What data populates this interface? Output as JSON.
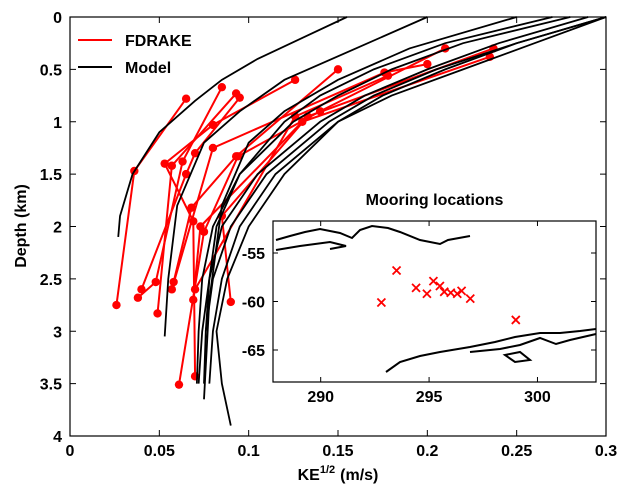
{
  "chart_data": [
    {
      "type": "line",
      "xlabel": {
        "base": "KE",
        "sup": "1/2",
        "unit": "(m/s)"
      },
      "ylabel": "Depth (km)",
      "xlim": [
        0,
        0.3
      ],
      "xticks": [
        0,
        0.05,
        0.1,
        0.15,
        0.2,
        0.25,
        0.3
      ],
      "ylim": [
        4,
        0
      ],
      "yticks": [
        0,
        0.5,
        1,
        1.5,
        2,
        2.5,
        3,
        3.5,
        4
      ],
      "legend": "upper left",
      "series": [
        {
          "name": "FDRAKE",
          "color": "#ff0000",
          "markers": true,
          "profiles": [
            {
              "x": [
                0.237,
                0.133,
                0.085,
                0.09
              ],
              "y": [
                0.3,
                0.95,
                1.9,
                2.72
              ]
            },
            {
              "x": [
                0.235,
                0.13,
                0.073,
                0.069
              ],
              "y": [
                0.38,
                1.0,
                2.0,
                2.7
              ]
            },
            {
              "x": [
                0.21,
                0.14,
                0.094,
                0.075,
                0.061
              ],
              "y": [
                0.3,
                0.9,
                1.33,
                2.05,
                3.51
              ]
            },
            {
              "x": [
                0.2,
                0.176,
                0.08,
                0.057
              ],
              "y": [
                0.45,
                0.53,
                1.25,
                2.6
              ]
            },
            {
              "x": [
                0.15,
                0.093,
                0.068,
                0.058
              ],
              "y": [
                0.5,
                1.33,
                1.82,
                2.53
              ]
            },
            {
              "x": [
                0.126,
                0.08,
                0.053,
                0.069,
                0.07
              ],
              "y": [
                0.6,
                1.03,
                1.4,
                1.95,
                3.43
              ]
            },
            {
              "x": [
                0.085,
                0.063,
                0.048,
                0.038
              ],
              "y": [
                0.67,
                1.38,
                2.53,
                2.68
              ]
            },
            {
              "x": [
                0.065,
                0.036,
                0.026
              ],
              "y": [
                0.78,
                1.47,
                2.75
              ]
            },
            {
              "x": [
                0.093,
                0.057,
                0.049
              ],
              "y": [
                0.73,
                1.42,
                2.83
              ]
            },
            {
              "x": [
                0.095,
                0.07,
                0.065,
                0.04
              ],
              "y": [
                0.77,
                1.3,
                1.5,
                2.6
              ]
            },
            {
              "x": [
                0.178,
                0.126,
                0.07
              ],
              "y": [
                0.56,
                0.95,
                2.6
              ]
            }
          ]
        },
        {
          "name": "Model",
          "color": "#000000",
          "markers": false,
          "profiles": [
            {
              "x": [
                0.29,
                0.24,
                0.2,
                0.165,
                0.14,
                0.105,
                0.085,
                0.078,
                0.074,
                0.072
              ],
              "y": [
                0,
                0.25,
                0.5,
                0.75,
                1,
                1.5,
                2,
                2.5,
                3,
                3.5
              ]
            },
            {
              "x": [
                0.3,
                0.25,
                0.205,
                0.17,
                0.145,
                0.11,
                0.09,
                0.08,
                0.076,
                0.075
              ],
              "y": [
                0,
                0.25,
                0.5,
                0.75,
                1,
                1.5,
                2,
                2.5,
                3,
                3.5
              ]
            },
            {
              "x": [
                0.28,
                0.22,
                0.18,
                0.15,
                0.125,
                0.095,
                0.08,
                0.074,
                0.072,
                0.071
              ],
              "y": [
                0,
                0.25,
                0.5,
                0.75,
                1,
                1.5,
                2,
                2.5,
                3,
                3.5
              ]
            },
            {
              "x": [
                0.27,
                0.21,
                0.17,
                0.14,
                0.12,
                0.095,
                0.082,
                0.078,
                0.076
              ],
              "y": [
                0,
                0.25,
                0.5,
                0.75,
                1,
                1.5,
                2,
                2.5,
                3
              ]
            },
            {
              "x": [
                0.3,
                0.26,
                0.22,
                0.18,
                0.15,
                0.115,
                0.095,
                0.085,
                0.08,
                0.078
              ],
              "y": [
                0,
                0.25,
                0.5,
                0.75,
                1,
                1.5,
                2,
                2.5,
                3,
                3.5
              ]
            },
            {
              "x": [
                0.3,
                0.25,
                0.21,
                0.175,
                0.15,
                0.12,
                0.1,
                0.088,
                0.082,
                0.085,
                0.09
              ],
              "y": [
                0,
                0.25,
                0.5,
                0.75,
                1,
                1.5,
                2,
                2.5,
                3,
                3.5,
                3.9
              ]
            },
            {
              "x": [
                0.155,
                0.13,
                0.105,
                0.085,
                0.07,
                0.05,
                0.035,
                0.028,
                0.027
              ],
              "y": [
                0,
                0.2,
                0.4,
                0.6,
                0.8,
                1.1,
                1.5,
                1.9,
                2.1
              ]
            },
            {
              "x": [
                0.2,
                0.16,
                0.12,
                0.095,
                0.075,
                0.06,
                0.055,
                0.053
              ],
              "y": [
                0,
                0.3,
                0.6,
                0.9,
                1.2,
                1.8,
                2.5,
                3.05
              ]
            },
            {
              "x": [
                0.25,
                0.19,
                0.15,
                0.12,
                0.1,
                0.085,
                0.078,
                0.075
              ],
              "y": [
                0,
                0.3,
                0.6,
                0.9,
                1.2,
                1.8,
                2.7,
                3.65
              ]
            }
          ]
        }
      ]
    },
    {
      "type": "scatter",
      "title": "Mooring locations",
      "xlim": [
        287.8,
        302.7
      ],
      "xticks": [
        290,
        295,
        300
      ],
      "ylim": [
        -68.3,
        -51.7
      ],
      "yticks": [
        -55,
        -60,
        -65
      ],
      "color": "#ff0000",
      "x": [
        293.5,
        292.8,
        294.4,
        294.9,
        295.2,
        295.5,
        296,
        296.3,
        296.5,
        296.9,
        299,
        295.7
      ],
      "y": [
        -56.8,
        -60.1,
        -58.6,
        -59.2,
        -57.9,
        -58.4,
        -59.1,
        -59.2,
        -58.9,
        -59.7,
        -61.9,
        -59
      ]
    }
  ]
}
